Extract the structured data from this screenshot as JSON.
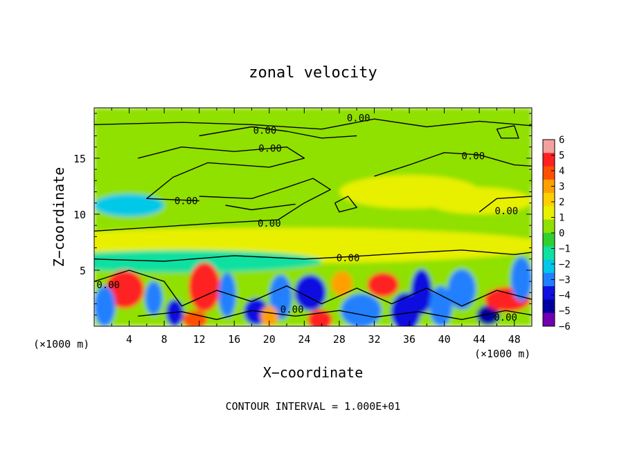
{
  "chart_data": {
    "type": "heatmap",
    "title": "zonal velocity",
    "xlabel": "X−coordinate",
    "ylabel": "Z−coordinate",
    "x_unit_left": "(×1000 m)",
    "x_unit_right": "(×1000 m)",
    "footer": "CONTOUR INTERVAL = 1.000E+01",
    "xlim": [
      0,
      50
    ],
    "ylim": [
      0,
      19.5
    ],
    "x_ticks": [
      4,
      8,
      12,
      16,
      20,
      24,
      28,
      32,
      36,
      40,
      44,
      48
    ],
    "x_tick_labels": [
      "4",
      "8",
      "12",
      "16",
      "20",
      "24",
      "28",
      "32",
      "36",
      "40",
      "44",
      "48"
    ],
    "y_ticks": [
      5,
      10,
      15
    ],
    "y_tick_labels": [
      "5",
      "10",
      "15"
    ],
    "colorbar": {
      "min": -6,
      "max": 6,
      "tick_values": [
        6,
        5,
        4,
        3,
        2,
        1,
        0,
        -1,
        -2,
        -3,
        -4,
        -5,
        -6
      ],
      "tick_labels": [
        "6",
        "5",
        "4",
        "3",
        "2",
        "1",
        "0",
        "−1",
        "−2",
        "−3",
        "−4",
        "−5",
        "−6"
      ],
      "colors": [
        "#f4a0a0",
        "#ff2020",
        "#ff5000",
        "#ffa000",
        "#ffd000",
        "#e8f000",
        "#90e000",
        "#30d030",
        "#10e0a0",
        "#00c8e8",
        "#2080ff",
        "#1010e0",
        "#0000a0",
        "#7000b0"
      ]
    },
    "contour_labels": [
      {
        "text": "0.00",
        "x": 30.2,
        "y": 18.6
      },
      {
        "text": "0.00",
        "x": 19.5,
        "y": 17.5
      },
      {
        "text": "0.00",
        "x": 20.1,
        "y": 15.9
      },
      {
        "text": "0.00",
        "x": 43.3,
        "y": 15.2
      },
      {
        "text": "0.00",
        "x": 10.5,
        "y": 11.2
      },
      {
        "text": "0.00",
        "x": 20.0,
        "y": 9.2
      },
      {
        "text": "0.00",
        "x": 29.0,
        "y": 6.1
      },
      {
        "text": "0.00",
        "x": 47.1,
        "y": 10.3
      },
      {
        "text": "0.00",
        "x": 1.6,
        "y": 3.7
      },
      {
        "text": "0.00",
        "x": 22.6,
        "y": 1.5
      },
      {
        "text": "0.00",
        "x": 47.0,
        "y": 0.8
      }
    ],
    "grid": false
  }
}
